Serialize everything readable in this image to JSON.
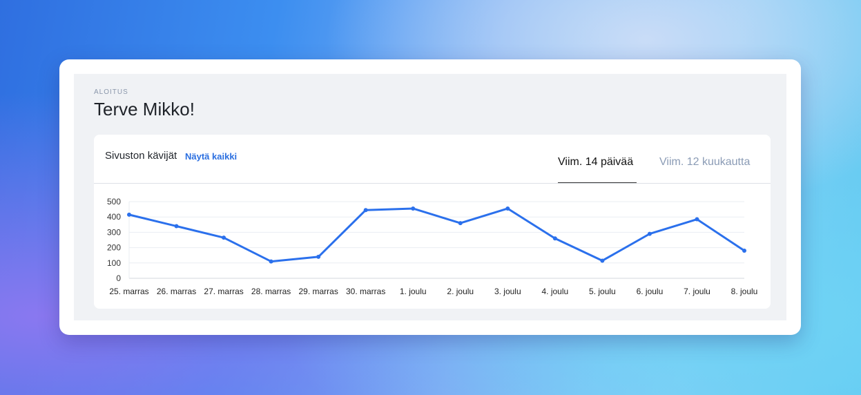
{
  "header": {
    "breadcrumb": "ALOITUS",
    "title": "Terve Mikko!"
  },
  "card": {
    "title": "Sivuston kävijät",
    "link": "Näytä kaikki",
    "tabs": [
      {
        "label": "Viim. 14 päivää",
        "active": true
      },
      {
        "label": "Viim. 12 kuukautta",
        "active": false
      }
    ]
  },
  "colors": {
    "line": "#2b70ec",
    "accent": "#2b6fe0"
  },
  "chart_data": {
    "type": "line",
    "categories": [
      "25. marras",
      "26. marras",
      "27. marras",
      "28. marras",
      "29. marras",
      "30. marras",
      "1. joulu",
      "2. joulu",
      "3. joulu",
      "4. joulu",
      "5. joulu",
      "6. joulu",
      "7. joulu",
      "8. joulu"
    ],
    "values": [
      415,
      340,
      265,
      110,
      140,
      445,
      455,
      360,
      455,
      260,
      115,
      290,
      385,
      180
    ],
    "yticks": [
      0,
      100,
      200,
      300,
      400,
      500
    ],
    "ylim": [
      0,
      500
    ],
    "grid": true
  }
}
